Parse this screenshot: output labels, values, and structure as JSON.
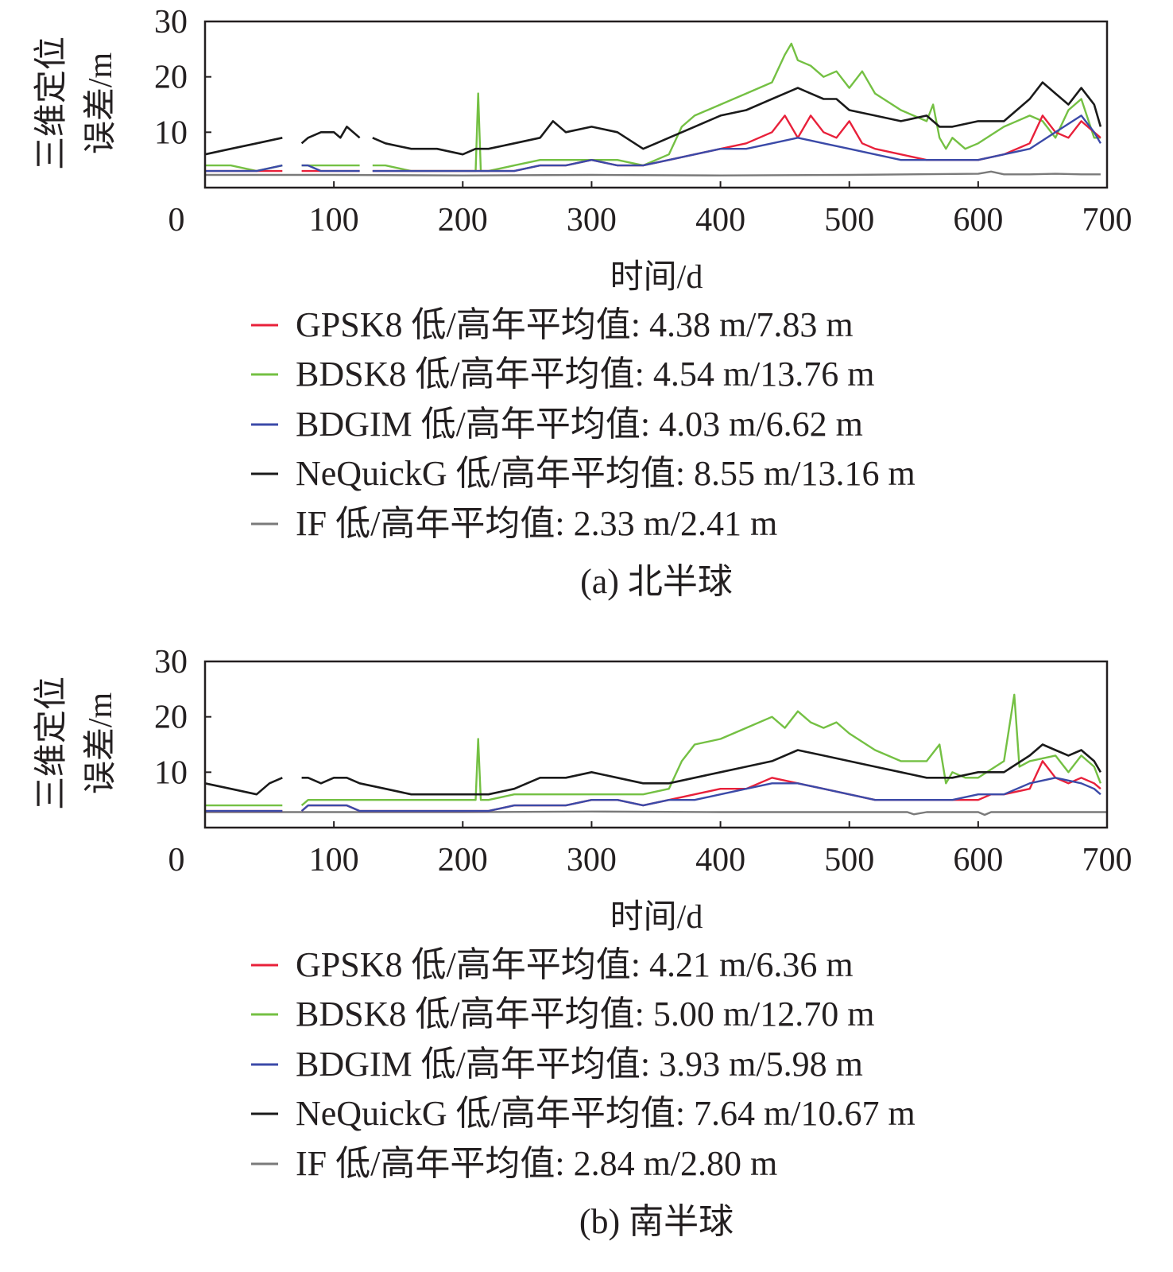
{
  "colors": {
    "GPSK8": "#e8203a",
    "BDSK8": "#74c043",
    "BDGIM": "#3b4aa8",
    "NeQuickG": "#1a1a1a",
    "IF": "#7a7a7a"
  },
  "panels": [
    {
      "caption": "(a) 北半球",
      "xlabel": "时间/d",
      "ylabel_line1": "三维定位",
      "ylabel_line2": "误差/m",
      "legend": [
        {
          "key": "GPSK8",
          "label": "GPSK8 低/高年平均值: 4.38 m/7.83 m"
        },
        {
          "key": "BDSK8",
          "label": "BDSK8 低/高年平均值: 4.54 m/13.76 m"
        },
        {
          "key": "BDGIM",
          "label": "BDGIM 低/高年平均值: 4.03 m/6.62 m"
        },
        {
          "key": "NeQuickG",
          "label": "NeQuickG 低/高年平均值: 8.55 m/13.16 m"
        },
        {
          "key": "IF",
          "label": "IF 低/高年平均值: 2.33 m/2.41 m"
        }
      ]
    },
    {
      "caption": "(b) 南半球",
      "xlabel": "时间/d",
      "ylabel_line1": "三维定位",
      "ylabel_line2": "误差/m",
      "legend": [
        {
          "key": "GPSK8",
          "label": "GPSK8 低/高年平均值: 4.21 m/6.36 m"
        },
        {
          "key": "BDSK8",
          "label": "BDSK8 低/高年平均值: 5.00 m/12.70 m"
        },
        {
          "key": "BDGIM",
          "label": "BDGIM 低/高年平均值: 3.93 m/5.98 m"
        },
        {
          "key": "NeQuickG",
          "label": "NeQuickG 低/高年平均值: 7.64 m/10.67 m"
        },
        {
          "key": "IF",
          "label": "IF 低/高年平均值: 2.84 m/2.80 m"
        }
      ]
    }
  ],
  "chart_data": [
    {
      "type": "line",
      "xlim": [
        0,
        700
      ],
      "ylim": [
        0,
        30
      ],
      "xticks": [
        "0",
        "100",
        "200",
        "300",
        "400",
        "500",
        "600",
        "700"
      ],
      "yticks": [
        "10",
        "20",
        "30"
      ],
      "series": [
        {
          "key": "NeQuickG",
          "x": [
            0,
            20,
            40,
            60,
            65,
            75,
            80,
            90,
            100,
            105,
            110,
            120,
            125,
            130,
            140,
            160,
            180,
            200,
            210,
            220,
            240,
            260,
            270,
            280,
            300,
            320,
            340,
            350,
            360,
            380,
            400,
            420,
            440,
            450,
            460,
            470,
            480,
            490,
            500,
            520,
            540,
            560,
            570,
            580,
            600,
            620,
            640,
            650,
            660,
            670,
            680,
            690,
            695
          ],
          "y": [
            6,
            7,
            8,
            9,
            null,
            8,
            9,
            10,
            10,
            9,
            11,
            9,
            null,
            9,
            8,
            7,
            7,
            6,
            7,
            7,
            8,
            9,
            12,
            10,
            11,
            10,
            7,
            8,
            9,
            11,
            13,
            14,
            16,
            17,
            18,
            17,
            16,
            16,
            14,
            13,
            12,
            13,
            11,
            11,
            12,
            12,
            16,
            19,
            17,
            15,
            18,
            15,
            11
          ]
        },
        {
          "key": "BDSK8",
          "x": [
            0,
            20,
            40,
            60,
            65,
            75,
            80,
            90,
            100,
            105,
            110,
            120,
            125,
            130,
            140,
            160,
            180,
            200,
            210,
            212,
            214,
            220,
            240,
            260,
            280,
            300,
            320,
            340,
            360,
            370,
            380,
            400,
            420,
            440,
            450,
            455,
            460,
            470,
            480,
            490,
            500,
            510,
            520,
            540,
            560,
            565,
            570,
            575,
            580,
            590,
            600,
            620,
            640,
            650,
            660,
            670,
            680,
            690,
            695
          ],
          "y": [
            4,
            4,
            3,
            4,
            null,
            4,
            4,
            4,
            4,
            4,
            4,
            4,
            null,
            4,
            4,
            3,
            3,
            3,
            3,
            17,
            3,
            3,
            4,
            5,
            5,
            5,
            5,
            4,
            6,
            11,
            13,
            15,
            17,
            19,
            24,
            26,
            23,
            22,
            20,
            21,
            18,
            21,
            17,
            14,
            12,
            15,
            9,
            7,
            9,
            7,
            8,
            11,
            13,
            12,
            9,
            14,
            16,
            9,
            9
          ]
        },
        {
          "key": "GPSK8",
          "x": [
            0,
            20,
            40,
            60,
            65,
            75,
            80,
            90,
            100,
            105,
            110,
            120,
            125,
            130,
            140,
            160,
            180,
            200,
            220,
            240,
            260,
            280,
            300,
            320,
            340,
            360,
            380,
            400,
            420,
            440,
            450,
            460,
            470,
            480,
            490,
            500,
            510,
            520,
            540,
            560,
            580,
            600,
            620,
            640,
            650,
            660,
            670,
            680,
            690,
            695
          ],
          "y": [
            3,
            3,
            3,
            3,
            null,
            3,
            3,
            3,
            3,
            3,
            3,
            3,
            null,
            3,
            3,
            3,
            3,
            3,
            3,
            3,
            4,
            4,
            5,
            4,
            4,
            5,
            6,
            7,
            8,
            10,
            13,
            9,
            13,
            10,
            9,
            12,
            8,
            7,
            6,
            5,
            5,
            5,
            6,
            8,
            13,
            10,
            9,
            12,
            10,
            9
          ]
        },
        {
          "key": "BDGIM",
          "x": [
            0,
            20,
            40,
            60,
            65,
            75,
            80,
            90,
            100,
            105,
            110,
            120,
            125,
            130,
            140,
            160,
            180,
            200,
            220,
            240,
            260,
            280,
            300,
            320,
            340,
            360,
            380,
            400,
            420,
            440,
            460,
            480,
            500,
            520,
            540,
            560,
            580,
            600,
            620,
            640,
            660,
            680,
            690,
            695
          ],
          "y": [
            3,
            3,
            3,
            4,
            null,
            4,
            4,
            3,
            3,
            3,
            3,
            3,
            null,
            3,
            3,
            3,
            3,
            3,
            3,
            3,
            4,
            4,
            5,
            4,
            4,
            5,
            6,
            7,
            7,
            8,
            9,
            8,
            7,
            6,
            5,
            5,
            5,
            5,
            6,
            7,
            10,
            13,
            10,
            8
          ]
        },
        {
          "key": "IF",
          "x": [
            0,
            100,
            200,
            300,
            400,
            500,
            600,
            610,
            620,
            640,
            660,
            680,
            695
          ],
          "y": [
            2.3,
            2.3,
            2.2,
            2.3,
            2.2,
            2.3,
            2.5,
            2.9,
            2.4,
            2.4,
            2.5,
            2.4,
            2.4
          ]
        }
      ]
    },
    {
      "type": "line",
      "xlim": [
        0,
        700
      ],
      "ylim": [
        0,
        30
      ],
      "xticks": [
        "0",
        "100",
        "200",
        "300",
        "400",
        "500",
        "600",
        "700"
      ],
      "yticks": [
        "10",
        "20",
        "30"
      ],
      "series": [
        {
          "key": "NeQuickG",
          "x": [
            0,
            20,
            40,
            50,
            60,
            65,
            75,
            80,
            90,
            100,
            110,
            120,
            140,
            160,
            180,
            200,
            210,
            220,
            240,
            260,
            280,
            300,
            320,
            340,
            360,
            380,
            400,
            420,
            440,
            460,
            480,
            500,
            520,
            540,
            560,
            570,
            580,
            600,
            620,
            640,
            650,
            660,
            670,
            680,
            690,
            695
          ],
          "y": [
            8,
            7,
            6,
            8,
            9,
            null,
            9,
            9,
            8,
            9,
            9,
            8,
            7,
            6,
            6,
            6,
            6,
            6,
            7,
            9,
            9,
            10,
            9,
            8,
            8,
            9,
            10,
            11,
            12,
            14,
            13,
            12,
            11,
            10,
            9,
            9,
            9,
            10,
            10,
            13,
            15,
            14,
            13,
            14,
            12,
            10
          ]
        },
        {
          "key": "BDSK8",
          "x": [
            0,
            20,
            40,
            60,
            65,
            75,
            80,
            90,
            100,
            110,
            120,
            140,
            160,
            180,
            200,
            210,
            212,
            214,
            220,
            240,
            260,
            280,
            300,
            320,
            340,
            360,
            370,
            380,
            400,
            420,
            440,
            450,
            460,
            470,
            480,
            490,
            500,
            520,
            540,
            560,
            570,
            575,
            580,
            590,
            600,
            620,
            628,
            632,
            640,
            660,
            670,
            680,
            690,
            695
          ],
          "y": [
            4,
            4,
            4,
            4,
            null,
            4,
            5,
            5,
            5,
            5,
            5,
            5,
            5,
            5,
            5,
            5,
            16,
            5,
            5,
            6,
            6,
            6,
            6,
            6,
            6,
            7,
            12,
            15,
            16,
            18,
            20,
            18,
            21,
            19,
            18,
            19,
            17,
            14,
            12,
            12,
            15,
            8,
            10,
            9,
            9,
            12,
            24,
            11,
            12,
            13,
            10,
            13,
            11,
            8
          ]
        },
        {
          "key": "GPSK8",
          "x": [
            0,
            20,
            40,
            60,
            65,
            75,
            80,
            90,
            100,
            110,
            120,
            140,
            160,
            180,
            200,
            220,
            240,
            260,
            280,
            300,
            320,
            340,
            360,
            380,
            400,
            420,
            440,
            460,
            480,
            500,
            520,
            540,
            560,
            580,
            600,
            610,
            620,
            640,
            650,
            660,
            670,
            680,
            690,
            695
          ],
          "y": [
            3,
            3,
            3,
            3,
            null,
            3,
            4,
            4,
            4,
            4,
            3,
            3,
            3,
            3,
            3,
            3,
            4,
            4,
            4,
            5,
            5,
            4,
            5,
            6,
            7,
            7,
            9,
            8,
            7,
            6,
            5,
            5,
            5,
            5,
            5,
            6,
            6,
            7,
            12,
            9,
            8,
            9,
            8,
            7
          ]
        },
        {
          "key": "BDGIM",
          "x": [
            0,
            20,
            40,
            60,
            65,
            75,
            80,
            90,
            100,
            110,
            120,
            140,
            160,
            180,
            200,
            220,
            240,
            260,
            280,
            300,
            320,
            340,
            360,
            380,
            400,
            420,
            440,
            460,
            480,
            500,
            520,
            540,
            560,
            580,
            600,
            620,
            640,
            660,
            680,
            690,
            695
          ],
          "y": [
            3,
            3,
            3,
            3,
            null,
            3,
            4,
            4,
            4,
            4,
            3,
            3,
            3,
            3,
            3,
            3,
            4,
            4,
            4,
            5,
            5,
            4,
            5,
            5,
            6,
            7,
            8,
            8,
            7,
            6,
            5,
            5,
            5,
            5,
            6,
            6,
            8,
            9,
            8,
            7,
            6
          ]
        },
        {
          "key": "IF",
          "x": [
            0,
            100,
            200,
            300,
            400,
            500,
            545,
            550,
            560,
            600,
            605,
            610,
            620,
            700
          ],
          "y": [
            2.8,
            2.8,
            2.8,
            2.9,
            2.8,
            2.8,
            2.8,
            2.4,
            2.8,
            2.8,
            2.3,
            2.8,
            2.8,
            2.8
          ]
        }
      ]
    }
  ]
}
